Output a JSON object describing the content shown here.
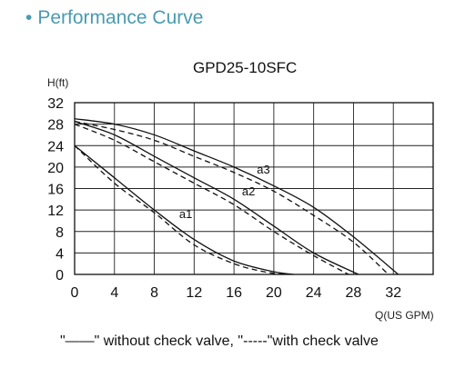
{
  "header": {
    "bullet": "•",
    "title": "Performance Curve"
  },
  "chart_data": {
    "type": "line",
    "title": "GPD25-10SFC",
    "ylabel": "H(ft)",
    "xlabel": "Q(US GPM)",
    "xlim": [
      0,
      36
    ],
    "ylim": [
      0,
      32
    ],
    "xticks": [
      0,
      4,
      8,
      12,
      16,
      20,
      24,
      28,
      32
    ],
    "yticks": [
      0,
      4,
      8,
      12,
      16,
      20,
      24,
      28,
      32
    ],
    "grid": true,
    "legend_text": "\"——\"  without check valve, \"-----\"with check valve",
    "series": [
      {
        "name": "a1",
        "style": "solid",
        "x": [
          0,
          4,
          8,
          12,
          16,
          20,
          22
        ],
        "y": [
          24,
          18,
          12,
          6.5,
          2.5,
          0.5,
          0
        ]
      },
      {
        "name": "a1",
        "style": "dashed",
        "x": [
          0,
          4,
          8,
          12,
          16,
          19,
          21
        ],
        "y": [
          24,
          17,
          11.5,
          5.5,
          2,
          0.5,
          0
        ]
      },
      {
        "name": "a2",
        "style": "solid",
        "x": [
          0,
          4,
          8,
          12,
          16,
          20,
          24,
          28.5
        ],
        "y": [
          28.5,
          26,
          22,
          18,
          14,
          9,
          4,
          0
        ]
      },
      {
        "name": "a2",
        "style": "dashed",
        "x": [
          0,
          4,
          8,
          12,
          16,
          20,
          24,
          27.5
        ],
        "y": [
          28,
          25,
          21,
          17,
          13,
          8,
          3.5,
          0
        ]
      },
      {
        "name": "a3",
        "style": "solid",
        "x": [
          0,
          4,
          8,
          12,
          16,
          20,
          24,
          28,
          32.5
        ],
        "y": [
          29,
          28,
          26,
          23,
          20,
          16.5,
          12.5,
          7,
          0
        ]
      },
      {
        "name": "a3",
        "style": "dashed",
        "x": [
          0,
          4,
          8,
          12,
          16,
          20,
          24,
          28,
          31.5
        ],
        "y": [
          28.5,
          27,
          25,
          22,
          19,
          15.5,
          11,
          6,
          0
        ]
      }
    ],
    "annotations": [
      {
        "text": "a1",
        "x": 10.5,
        "y": 10.5
      },
      {
        "text": "a2",
        "x": 16.8,
        "y": 14.7
      },
      {
        "text": "a3",
        "x": 18.3,
        "y": 18.8
      }
    ]
  }
}
